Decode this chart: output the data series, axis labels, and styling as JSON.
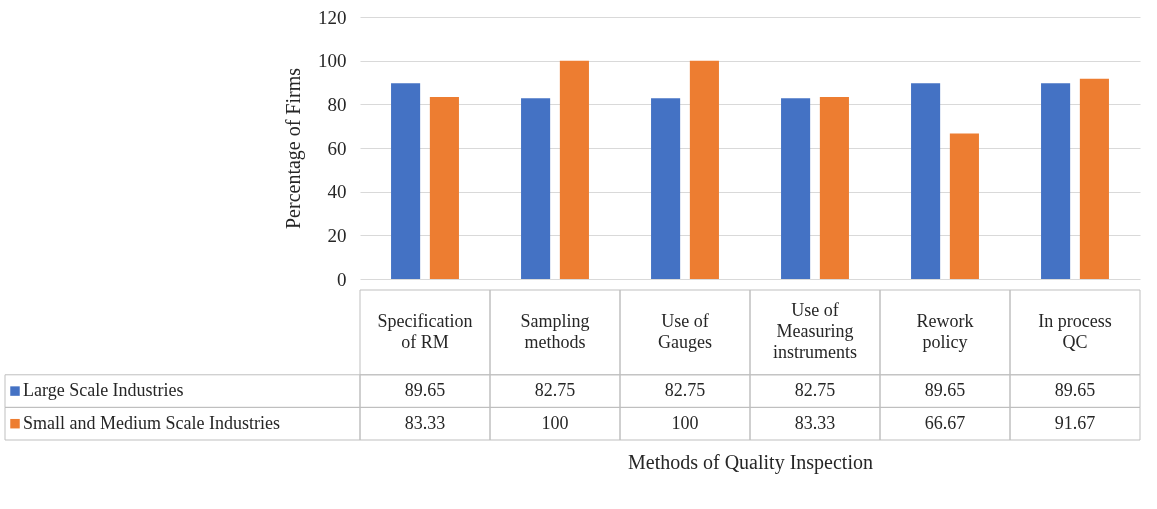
{
  "chart_data": {
    "type": "bar",
    "xlabel": "Methods of Quality Inspection",
    "ylabel": "Percentage of Firms",
    "categories": [
      "Specification of RM",
      "Sampling methods",
      "Use of Gauges",
      "Use of Measuring instruments",
      "Rework policy",
      "In process QC"
    ],
    "series": [
      {
        "name": "Large Scale Industries",
        "color": "#4472c4",
        "values": [
          89.65,
          82.75,
          82.75,
          82.75,
          89.65,
          89.65
        ]
      },
      {
        "name": "Small and Medium Scale Industries",
        "color": "#ed7d31",
        "values": [
          83.33,
          100,
          100,
          83.33,
          66.67,
          91.67
        ]
      }
    ],
    "ylim": [
      0,
      120
    ],
    "yticks": [
      0,
      20,
      40,
      60,
      80,
      100,
      120
    ],
    "grid": "y",
    "legend": "bottom left",
    "data_labels": true
  }
}
